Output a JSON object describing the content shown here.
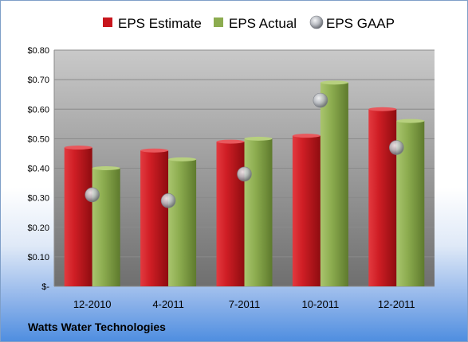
{
  "company_label": "Watts Water Technologies",
  "colors": {
    "estimate": "#c8161d",
    "actual": "#8cac4f",
    "gaap": "#b9bcc2",
    "plot_top": "#c9c9c9",
    "plot_bottom": "#6f6f6f"
  },
  "chart_data": {
    "type": "bar",
    "title": "",
    "xlabel": "",
    "ylabel": "",
    "categories": [
      "12-2010",
      "4-2011",
      "7-2011",
      "10-2011",
      "12-2011"
    ],
    "series": [
      {
        "name": "EPS Estimate",
        "type": "bar",
        "values": [
          0.47,
          0.46,
          0.49,
          0.51,
          0.6
        ]
      },
      {
        "name": "EPS Actual",
        "type": "bar",
        "values": [
          0.4,
          0.43,
          0.5,
          0.69,
          0.56
        ]
      },
      {
        "name": "EPS GAAP",
        "type": "scatter",
        "values": [
          0.31,
          0.29,
          0.38,
          0.63,
          0.47
        ]
      }
    ],
    "ylim": [
      0,
      0.8
    ],
    "yticks": [
      0,
      0.1,
      0.2,
      0.3,
      0.4,
      0.5,
      0.6,
      0.7,
      0.8
    ],
    "ytick_labels": [
      "$-",
      "$0.10",
      "$0.20",
      "$0.30",
      "$0.40",
      "$0.50",
      "$0.60",
      "$0.70",
      "$0.80"
    ],
    "grid": true,
    "legend": "top"
  }
}
